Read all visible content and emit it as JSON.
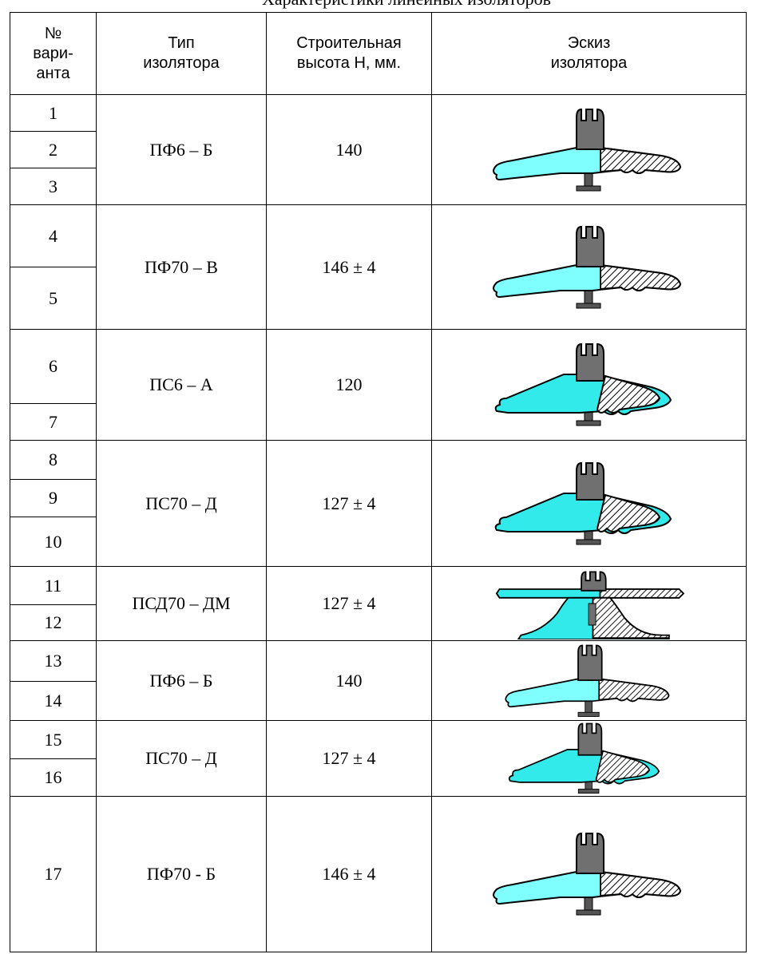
{
  "title": "Характеристики линейных изоляторов",
  "table": {
    "header": [
      [
        "№",
        "вари-",
        "анта"
      ],
      [
        "Тип",
        "изолятора"
      ],
      [
        "Строительная",
        "высота Н, мм."
      ],
      [
        "Эскиз",
        "изолятора"
      ]
    ],
    "groups": [
      {
        "rows": [
          "1",
          "2",
          "3"
        ],
        "type": "ПФ6 – Б",
        "height": "140"
      },
      {
        "rows": [
          "4",
          "5"
        ],
        "type": "ПФ70 – В",
        "height": "146 ± 4"
      },
      {
        "rows": [
          "6",
          "7"
        ],
        "type": "ПС6 – А",
        "height": "120"
      },
      {
        "rows": [
          "8",
          "9",
          "10"
        ],
        "type": "ПС70 – Д",
        "height": "127 ± 4"
      },
      {
        "rows": [
          "11",
          "12"
        ],
        "type": "ПСД70 – ДМ",
        "height": "127 ± 4"
      },
      {
        "rows": [
          "13",
          "14"
        ],
        "type": "ПФ6 – Б",
        "height": "140"
      },
      {
        "rows": [
          "15",
          "16"
        ],
        "type": "ПС70 – Д",
        "height": "127 ± 4"
      },
      {
        "rows": [
          "17"
        ],
        "type": "ПФ70 - Б",
        "height": "146 ± 4"
      }
    ]
  }
}
